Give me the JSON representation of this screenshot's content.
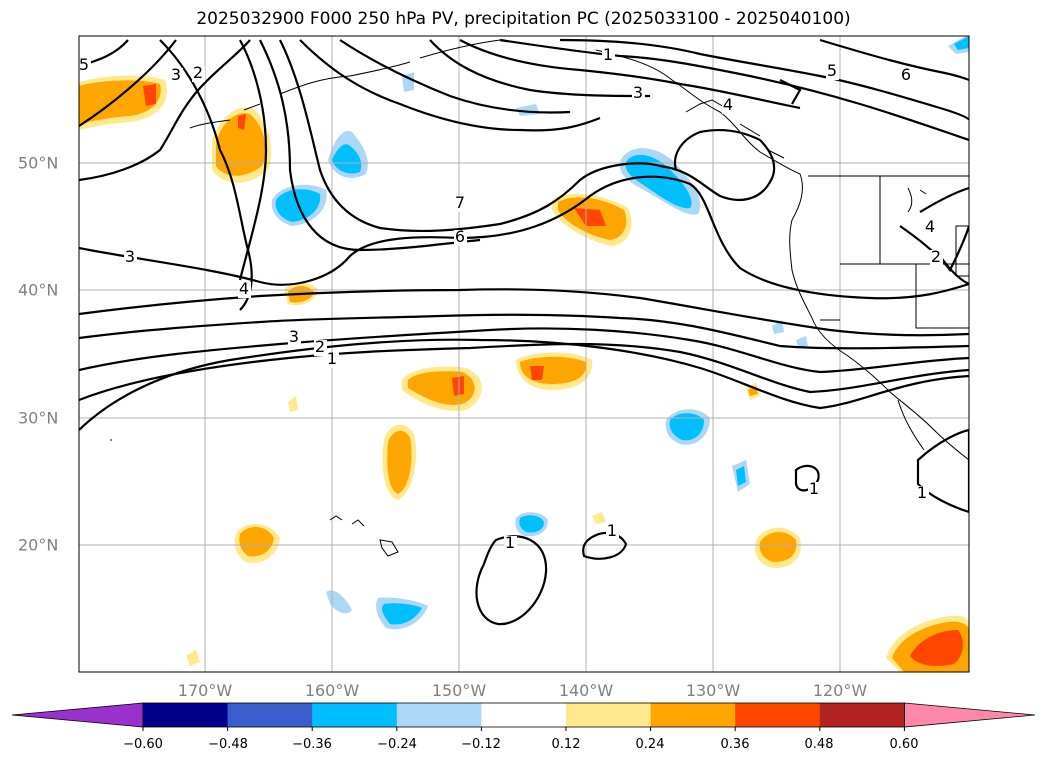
{
  "title": "2025032900 F000 250 hPa PV, precipitation PC (2025033100 - 2025040100)",
  "map": {
    "lon_range": [
      "-180",
      "-110"
    ],
    "lat_range": [
      "10",
      "60"
    ],
    "x_ticks": [
      "170°W",
      "160°W",
      "150°W",
      "140°W",
      "130°W",
      "120°W"
    ],
    "y_ticks": [
      "50°N",
      "40°N",
      "30°N",
      "20°N"
    ],
    "contour_labels": [
      "5",
      "3",
      "2",
      "1",
      "3",
      "4",
      "5",
      "6",
      "7",
      "6",
      "3",
      "4",
      "3",
      "2",
      "1",
      "4",
      "2",
      "1",
      "1",
      "1",
      "1"
    ],
    "grid": true
  },
  "colorbar": {
    "labels": [
      "−0.60",
      "−0.48",
      "−0.36",
      "−0.24",
      "−0.12",
      "0.12",
      "0.24",
      "0.36",
      "0.48",
      "0.60"
    ],
    "colors": [
      "#9932cc",
      "#00008b",
      "#3a5fcd",
      "#00bfff",
      "#add8f5",
      "#ffffff",
      "#ffe98c",
      "#ffa500",
      "#ff4500",
      "#b22222",
      "#ff88aa"
    ]
  }
}
